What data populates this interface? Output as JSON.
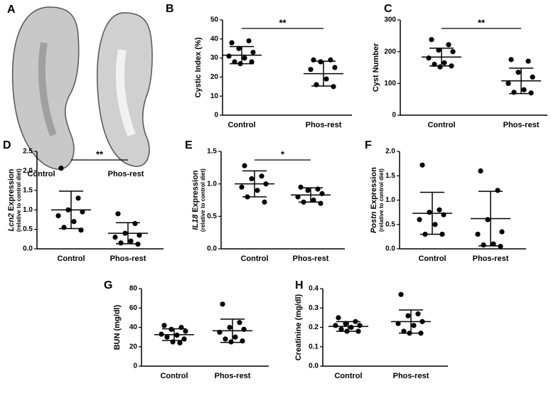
{
  "panel_a": {
    "label": "A",
    "captions": [
      "Control",
      "Phos-rest"
    ]
  },
  "chart_data": [
    {
      "type": "dot",
      "label": "B",
      "ylabel": "Cystic Index (%)",
      "categories": [
        "Control",
        "Phos-rest"
      ],
      "points": [
        [
          38,
          39,
          35,
          33,
          31,
          30,
          28,
          28,
          27
        ],
        [
          29,
          29,
          28,
          25,
          24,
          19,
          16,
          15
        ]
      ],
      "means": [
        31.5,
        21.8
      ],
      "sds": [
        4.5,
        6.5
      ],
      "ylim": [
        0,
        50
      ],
      "yticks": [
        0,
        10,
        20,
        30,
        40,
        50
      ],
      "significance": "**",
      "color": "#000000"
    },
    {
      "type": "dot",
      "label": "C",
      "ylabel": "Cyst Number",
      "categories": [
        "Control",
        "Phos-rest"
      ],
      "points": [
        [
          238,
          222,
          205,
          200,
          180,
          165,
          160,
          155,
          152
        ],
        [
          175,
          170,
          135,
          120,
          100,
          80,
          72,
          70
        ]
      ],
      "means": [
        183,
        108
      ],
      "sds": [
        28,
        40
      ],
      "ylim": [
        0,
        300
      ],
      "yticks": [
        0,
        100,
        200,
        300
      ],
      "significance": "**",
      "color": "#000000"
    },
    {
      "type": "dot",
      "label": "D",
      "ylabel_gene": "Lcn2",
      "ylabel": "Expression",
      "ylabel_sub": "(relative to control diet)",
      "categories": [
        "Control",
        "Phos-rest"
      ],
      "points": [
        [
          2.07,
          1.3,
          1.0,
          0.95,
          0.85,
          0.7,
          0.55,
          0.48
        ],
        [
          0.9,
          0.65,
          0.4,
          0.35,
          0.3,
          0.2,
          0.15,
          0.12
        ]
      ],
      "means": [
        1.0,
        0.4
      ],
      "sds": [
        0.48,
        0.27
      ],
      "ylim": [
        0,
        2.5
      ],
      "yticks": [
        {
          "value": 0,
          "label": "0.0"
        },
        0.5,
        {
          "value": 1,
          "label": "1.0"
        },
        1.5,
        {
          "value": 2,
          "label": "2.0"
        },
        2.5
      ],
      "significance": "**",
      "color": "#000000"
    },
    {
      "type": "dot",
      "label": "E",
      "ylabel_gene": "IL18",
      "ylabel": "Expression",
      "ylabel_sub": "(relative to control diet)",
      "categories": [
        "Control",
        "Phos-rest"
      ],
      "points": [
        [
          1.28,
          1.12,
          1.08,
          1.0,
          0.95,
          0.9,
          0.8,
          0.72
        ],
        [
          0.95,
          0.92,
          0.9,
          0.85,
          0.8,
          0.75,
          0.72,
          0.7
        ]
      ],
      "means": [
        1.0,
        0.83
      ],
      "sds": [
        0.2,
        0.11
      ],
      "ylim": [
        0,
        1.5
      ],
      "yticks": [
        {
          "value": 0,
          "label": "0.0"
        },
        0.5,
        {
          "value": 1,
          "label": "1.0"
        },
        1.5
      ],
      "significance": "*",
      "color": "#000000"
    },
    {
      "type": "dot",
      "label": "F",
      "ylabel_gene": "Postn",
      "ylabel": "Expression",
      "ylabel_sub": "(relative to control diet)",
      "categories": [
        "Control",
        "Phos-rest"
      ],
      "points": [
        [
          1.72,
          0.8,
          0.75,
          0.7,
          0.6,
          0.5,
          0.3,
          0.3
        ],
        [
          1.6,
          1.2,
          0.6,
          0.35,
          0.3,
          0.1,
          0.08,
          0.05
        ]
      ],
      "means": [
        0.73,
        0.62
      ],
      "sds": [
        0.43,
        0.56
      ],
      "ylim": [
        0,
        2
      ],
      "yticks": [
        {
          "value": 0,
          "label": "0.0"
        },
        0.5,
        {
          "value": 1,
          "label": "1.0"
        },
        1.5,
        {
          "value": 2,
          "label": "2.0"
        }
      ],
      "color": "#000000"
    },
    {
      "type": "dot",
      "label": "G",
      "ylabel": "BUN (mg/dl)",
      "categories": [
        "Control",
        "Phos-rest"
      ],
      "points": [
        [
          42,
          40,
          38,
          36,
          33,
          32,
          30,
          28,
          25,
          24
        ],
        [
          64,
          45,
          40,
          38,
          35,
          30,
          28,
          26,
          25
        ]
      ],
      "means": [
        32.5,
        36.5
      ],
      "sds": [
        6,
        12
      ],
      "ylim": [
        0,
        80
      ],
      "yticks": [
        0,
        20,
        40,
        60,
        80
      ],
      "color": "#000000"
    },
    {
      "type": "dot",
      "label": "H",
      "ylabel": "Creatinine (mg/dl)",
      "categories": [
        "Control",
        "Phos-rest"
      ],
      "points": [
        [
          0.25,
          0.23,
          0.22,
          0.21,
          0.21,
          0.2,
          0.19,
          0.18,
          0.18
        ],
        [
          0.37,
          0.27,
          0.26,
          0.23,
          0.22,
          0.21,
          0.18,
          0.17,
          0.17
        ]
      ],
      "means": [
        0.205,
        0.23
      ],
      "sds": [
        0.025,
        0.06
      ],
      "ylim": [
        0,
        0.4
      ],
      "yticks": [
        {
          "value": 0,
          "label": "0.0"
        },
        0.1,
        0.2,
        0.3,
        0.4
      ],
      "color": "#000000"
    }
  ]
}
